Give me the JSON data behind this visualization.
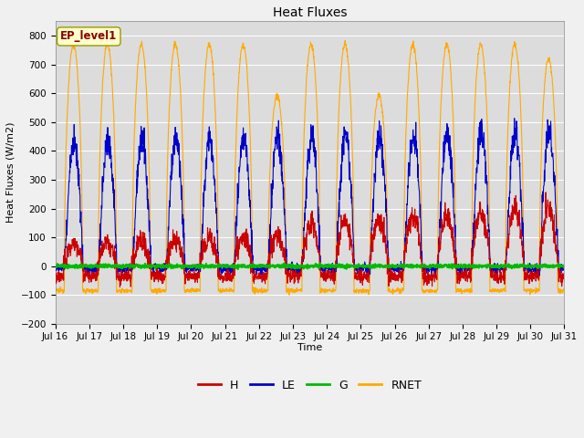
{
  "title": "Heat Fluxes",
  "ylabel": "Heat Fluxes (W/m2)",
  "xlabel": "Time",
  "annotation": "EP_level1",
  "ylim": [
    -200,
    850
  ],
  "yticks": [
    -200,
    -100,
    0,
    100,
    200,
    300,
    400,
    500,
    600,
    700,
    800
  ],
  "n_days": 15,
  "start_day": 16,
  "colors": {
    "H": "#cc0000",
    "LE": "#0000cc",
    "G": "#00bb00",
    "RNET": "#ffaa00"
  },
  "bg_color": "#dcdcdc",
  "fig_bg_color": "#f0f0f0",
  "annotation_box_color": "#ffffcc",
  "annotation_text_color": "#880000",
  "grid_color": "#ffffff",
  "linewidth": 0.8
}
